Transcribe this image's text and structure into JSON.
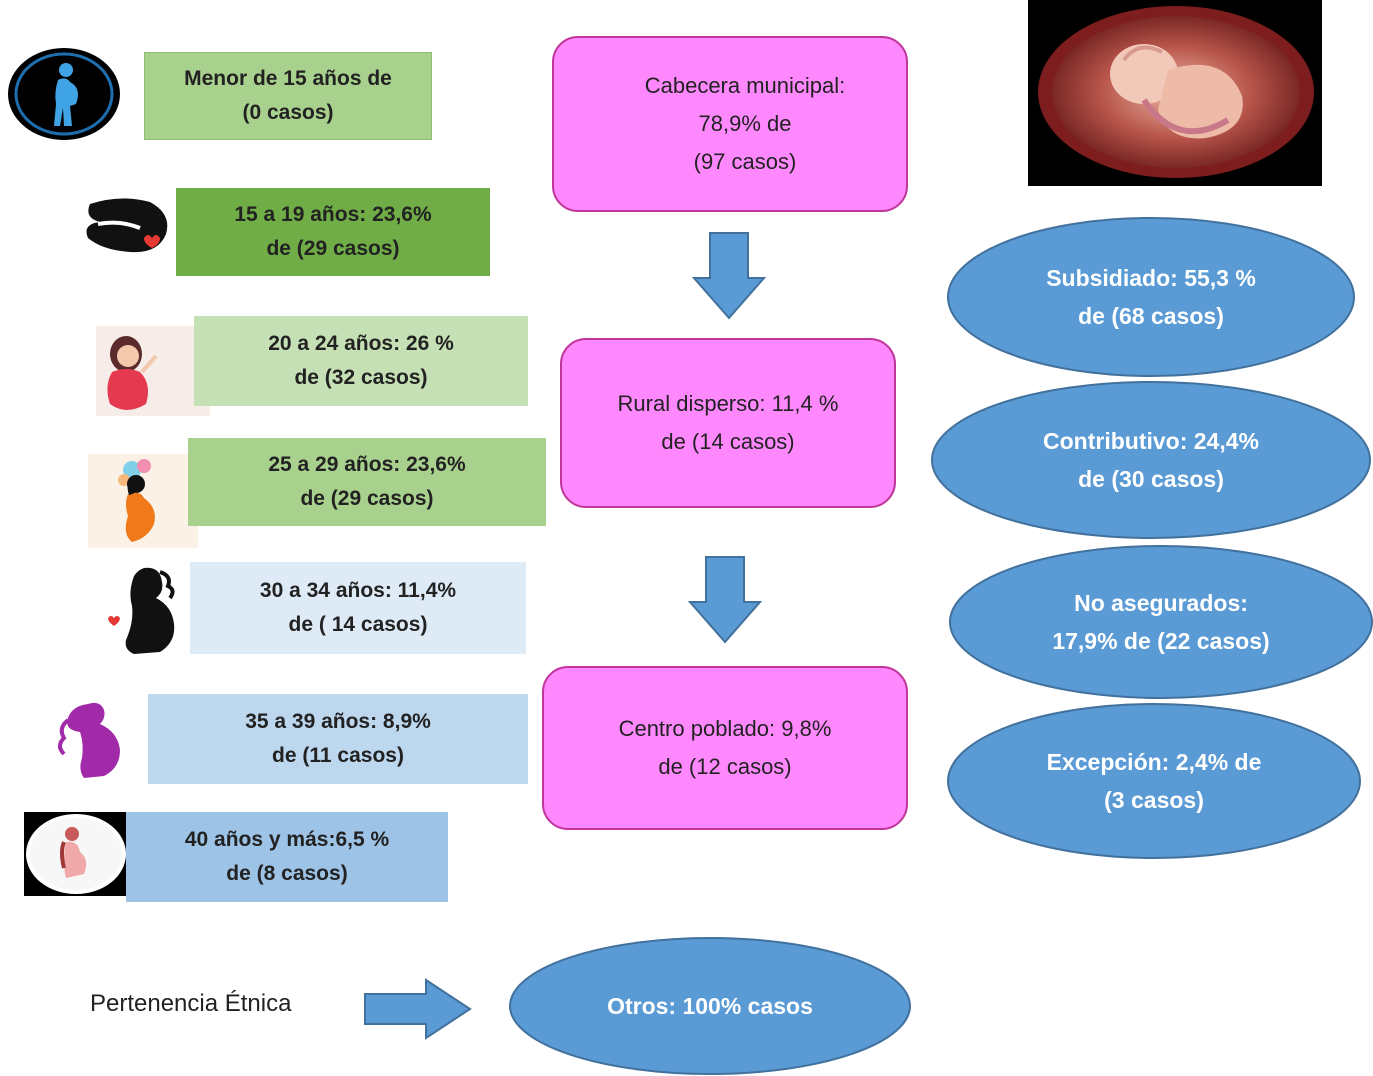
{
  "colors": {
    "pink_fill": "#ff88ff",
    "pink_border": "#c0359a",
    "oval_fill": "#5b9bd5",
    "oval_border": "#41719c",
    "arrow_fill": "#5b9bd5"
  },
  "age_groups": [
    {
      "label": "Menor de 15 años  de\n(0 casos)",
      "color": "#a9d18e",
      "icon": "pregnant-woman-sign-icon"
    },
    {
      "label": "15 a 19 años: 23,6%\nde (29 casos)",
      "color": "#70ad47",
      "icon": "pregnant-silhouette-heart-icon"
    },
    {
      "label": "20 a 24 años: 26 %\nde (32 casos)",
      "color": "#c5e0b4",
      "icon": "pregnant-woman-cartoon-icon"
    },
    {
      "label": "25 a 29 años: 23,6%\nde (29 casos)",
      "color": "#a9d18e",
      "icon": "pregnant-woman-flowers-icon"
    },
    {
      "label": "30 a 34 años: 11,4%\nde ( 14 casos)",
      "color": "#deebf7",
      "icon": "pregnant-silhouette-curly-icon"
    },
    {
      "label": "35 a 39 años: 8,9%\nde  (11  casos)",
      "color": "#bdd7ee",
      "icon": "pregnant-silhouette-purple-icon"
    },
    {
      "label": "40 años y más:6,5 %\nde (8 casos)",
      "color": "#9dc3e6",
      "icon": "pregnant-woman-circle-icon"
    }
  ],
  "locations": [
    {
      "label": "Cabecera municipal:\n78,9%   de\n(97 casos)"
    },
    {
      "label": "Rural disperso: 11,4 %\nde (14 casos)"
    },
    {
      "label": "Centro poblado: 9,8%\nde (12 casos)"
    }
  ],
  "insurance": [
    {
      "label": "Subsidiado: 55,3 %\nde (68 casos)"
    },
    {
      "label": "Contributivo: 24,4%\nde (30 casos)"
    },
    {
      "label": "No asegurados:\n17,9% de (22 casos)"
    },
    {
      "label": "Excepción: 2,4% de\n(3 casos)"
    }
  ],
  "ethnic": {
    "label": "Pertenencia Étnica",
    "value": "Otros: 100% casos"
  },
  "fetus_image": {
    "icon": "fetus-in-womb-image"
  }
}
